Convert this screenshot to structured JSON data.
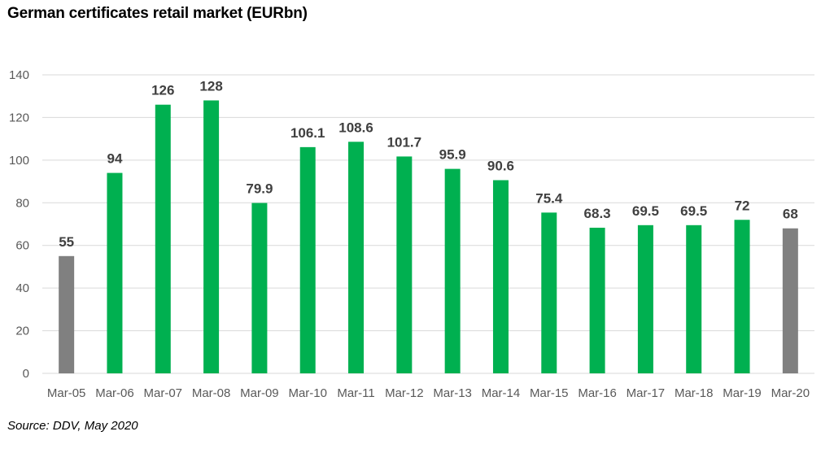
{
  "title": "German certificates retail market (EURbn)",
  "source": "Source: DDV, May 2020",
  "chart_data": {
    "type": "bar",
    "title": "German certificates retail market (EURbn)",
    "xlabel": "",
    "ylabel": "",
    "ylim": [
      0,
      140
    ],
    "yticks": [
      0,
      20,
      40,
      60,
      80,
      100,
      120,
      140
    ],
    "grid": true,
    "legend": "none",
    "categories": [
      "Mar-05",
      "Mar-06",
      "Mar-07",
      "Mar-08",
      "Mar-09",
      "Mar-10",
      "Mar-11",
      "Mar-12",
      "Mar-13",
      "Mar-14",
      "Mar-15",
      "Mar-16",
      "Mar-17",
      "Mar-18",
      "Mar-19",
      "Mar-20"
    ],
    "values": [
      55,
      94,
      126,
      128,
      79.9,
      106.1,
      108.6,
      101.7,
      95.9,
      90.6,
      75.4,
      68.3,
      69.5,
      69.5,
      72,
      68
    ],
    "data_labels": [
      "55",
      "94",
      "126",
      "128",
      "79.9",
      "106.1",
      "108.6",
      "101.7",
      "95.9",
      "90.6",
      "75.4",
      "68.3",
      "69.5",
      "69.5",
      "72",
      "68"
    ],
    "colors": [
      "#808080",
      "#00b050",
      "#00b050",
      "#00b050",
      "#00b050",
      "#00b050",
      "#00b050",
      "#00b050",
      "#00b050",
      "#00b050",
      "#00b050",
      "#00b050",
      "#00b050",
      "#00b050",
      "#00b050",
      "#808080"
    ]
  }
}
